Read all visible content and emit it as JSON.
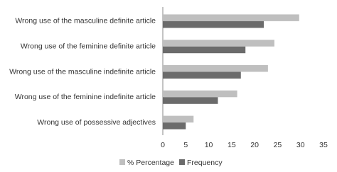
{
  "chart_data": {
    "type": "hbar",
    "categories": [
      "Wrong use of the masculine definite article",
      "Wrong use of the feminine definite article",
      "Wrong use of the masculine indefinite article",
      "Wrong use of the feminine indefinite article",
      "Wrong use of possessive adjectives"
    ],
    "series": [
      {
        "name": "% Percentage",
        "color": "#bfbfbf",
        "values": [
          29.7,
          24.3,
          22.9,
          16.2,
          6.7
        ]
      },
      {
        "name": "Frequency",
        "color": "#6b6b6b",
        "values": [
          22,
          18,
          17,
          12,
          5
        ]
      }
    ],
    "xlim": [
      0,
      35
    ],
    "xticks": [
      0,
      5,
      10,
      15,
      20,
      25,
      30,
      35
    ],
    "legend": "bottom"
  }
}
